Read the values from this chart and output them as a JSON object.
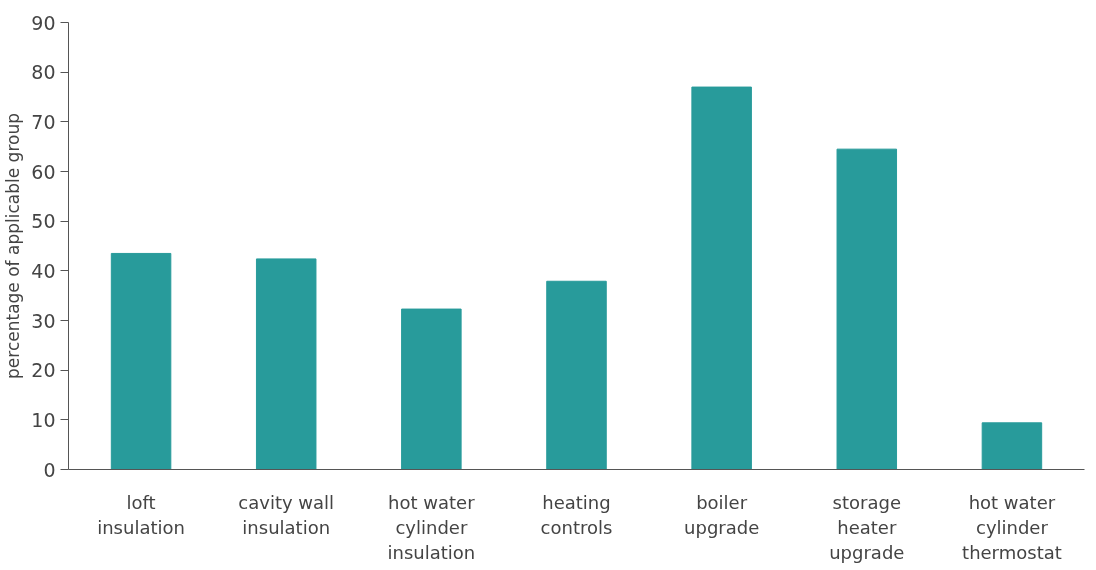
{
  "chart_data": {
    "type": "bar",
    "ylabel": "percentage of applicable group",
    "categories": [
      "loft insulation",
      "cavity wall insulation",
      "hot water cylinder insulation",
      "heating controls",
      "boiler upgrade",
      "storage heater upgrade",
      "hot water cylinder thermostat"
    ],
    "values": [
      43.5,
      42.4,
      32.3,
      37.9,
      77.0,
      64.5,
      9.4
    ],
    "color": "#289b9b",
    "ylim": [
      0,
      90
    ],
    "yticks": [
      0,
      10,
      20,
      30,
      40,
      50,
      60,
      70,
      80,
      90
    ],
    "grid": false
  }
}
